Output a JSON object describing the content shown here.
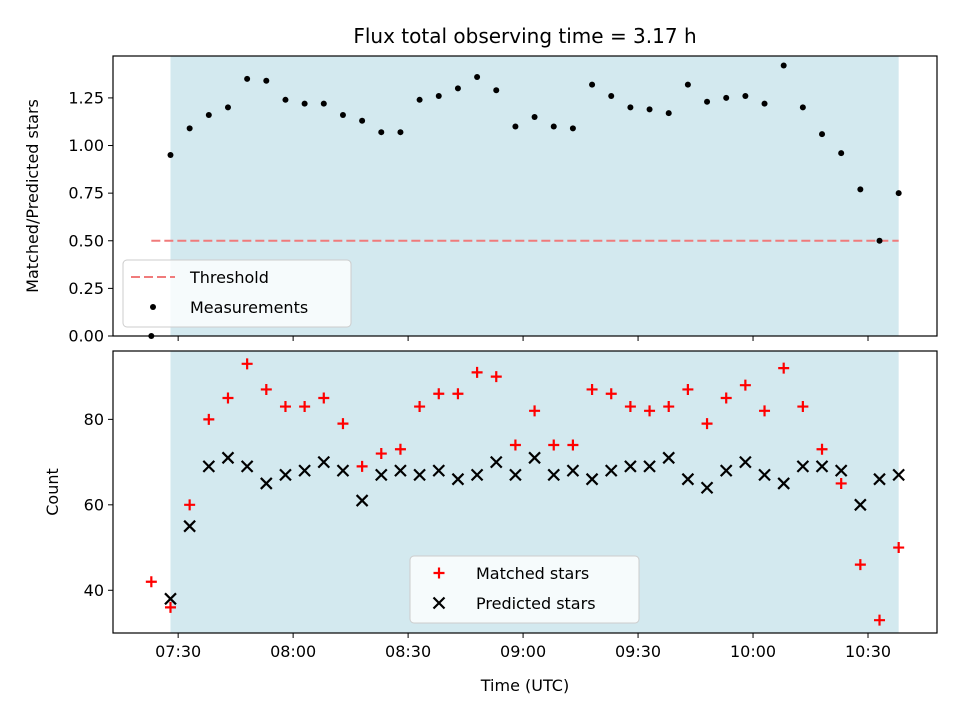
{
  "title": "Flux total observing time = 3.17 h",
  "colors": {
    "observing_band": "#d3e9ef",
    "threshold": "#f07b7b",
    "measurement": "#000000",
    "matched": "#ff0000",
    "predicted": "#000000"
  },
  "chart_data": [
    {
      "type": "scatter",
      "panel": "top",
      "ylabel": "Matched/Predicted stars",
      "xlim": [
        "07:13",
        "10:48"
      ],
      "ylim": [
        0,
        1.47
      ],
      "yticks": [
        0.0,
        0.25,
        0.5,
        0.75,
        1.0,
        1.25
      ],
      "ytick_labels": [
        "0.00",
        "0.25",
        "0.50",
        "0.75",
        "1.00",
        "1.25"
      ],
      "xticks": [
        "07:30",
        "08:00",
        "08:30",
        "09:00",
        "09:30",
        "10:00",
        "10:30"
      ],
      "observing_band": [
        "07:28",
        "10:38"
      ],
      "threshold": {
        "value": 0.5,
        "from": "07:23",
        "to": "10:38",
        "label": "Threshold"
      },
      "legend_position": "lower-left",
      "series": [
        {
          "name": "Measurements",
          "marker": "dot",
          "x": [
            "07:23",
            "07:28",
            "07:33",
            "07:38",
            "07:43",
            "07:48",
            "07:53",
            "07:58",
            "08:03",
            "08:08",
            "08:13",
            "08:18",
            "08:23",
            "08:28",
            "08:33",
            "08:38",
            "08:43",
            "08:48",
            "08:53",
            "08:58",
            "09:03",
            "09:08",
            "09:13",
            "09:18",
            "09:23",
            "09:28",
            "09:33",
            "09:38",
            "09:43",
            "09:48",
            "09:53",
            "09:58",
            "10:03",
            "10:08",
            "10:13",
            "10:18",
            "10:23",
            "10:28",
            "10:33",
            "10:38"
          ],
          "y": [
            0.0,
            0.95,
            1.09,
            1.16,
            1.2,
            1.35,
            1.34,
            1.24,
            1.22,
            1.22,
            1.16,
            1.13,
            1.07,
            1.07,
            1.24,
            1.26,
            1.3,
            1.36,
            1.29,
            1.1,
            1.15,
            1.1,
            1.09,
            1.32,
            1.26,
            1.2,
            1.19,
            1.17,
            1.32,
            1.23,
            1.25,
            1.26,
            1.22,
            1.42,
            1.2,
            1.06,
            0.96,
            0.77,
            0.5,
            0.75
          ]
        }
      ]
    },
    {
      "type": "scatter",
      "panel": "bottom",
      "xlabel": "Time (UTC)",
      "ylabel": "Count",
      "xlim": [
        "07:13",
        "10:48"
      ],
      "ylim": [
        30,
        96
      ],
      "yticks": [
        40,
        60,
        80
      ],
      "xticks": [
        "07:30",
        "08:00",
        "08:30",
        "09:00",
        "09:30",
        "10:00",
        "10:30"
      ],
      "observing_band": [
        "07:28",
        "10:38"
      ],
      "legend_position": "lower-center",
      "series": [
        {
          "name": "Matched stars",
          "marker": "plus",
          "x": [
            "07:23",
            "07:28",
            "07:33",
            "07:38",
            "07:43",
            "07:48",
            "07:53",
            "07:58",
            "08:03",
            "08:08",
            "08:13",
            "08:18",
            "08:23",
            "08:28",
            "08:33",
            "08:38",
            "08:43",
            "08:48",
            "08:53",
            "08:58",
            "09:03",
            "09:08",
            "09:13",
            "09:18",
            "09:23",
            "09:28",
            "09:33",
            "09:38",
            "09:43",
            "09:48",
            "09:53",
            "09:58",
            "10:03",
            "10:08",
            "10:13",
            "10:18",
            "10:23",
            "10:28",
            "10:33",
            "10:38"
          ],
          "y": [
            42,
            36,
            60,
            80,
            85,
            93,
            87,
            83,
            83,
            85,
            79,
            69,
            72,
            73,
            83,
            86,
            86,
            91,
            90,
            74,
            82,
            74,
            74,
            87,
            86,
            83,
            82,
            83,
            87,
            79,
            85,
            88,
            82,
            92,
            83,
            73,
            65,
            46,
            33,
            50
          ]
        },
        {
          "name": "Predicted stars",
          "marker": "x",
          "x": [
            "07:28",
            "07:33",
            "07:38",
            "07:43",
            "07:48",
            "07:53",
            "07:58",
            "08:03",
            "08:08",
            "08:13",
            "08:18",
            "08:23",
            "08:28",
            "08:33",
            "08:38",
            "08:43",
            "08:48",
            "08:53",
            "08:58",
            "09:03",
            "09:08",
            "09:13",
            "09:18",
            "09:23",
            "09:28",
            "09:33",
            "09:38",
            "09:43",
            "09:48",
            "09:53",
            "09:58",
            "10:03",
            "10:08",
            "10:13",
            "10:18",
            "10:23",
            "10:28",
            "10:33",
            "10:38"
          ],
          "y": [
            38,
            55,
            69,
            71,
            69,
            65,
            67,
            68,
            70,
            68,
            61,
            67,
            68,
            67,
            68,
            66,
            67,
            70,
            67,
            71,
            67,
            68,
            66,
            68,
            69,
            69,
            71,
            66,
            64,
            68,
            70,
            67,
            65,
            69,
            69,
            68,
            60,
            66,
            67
          ]
        }
      ]
    }
  ]
}
